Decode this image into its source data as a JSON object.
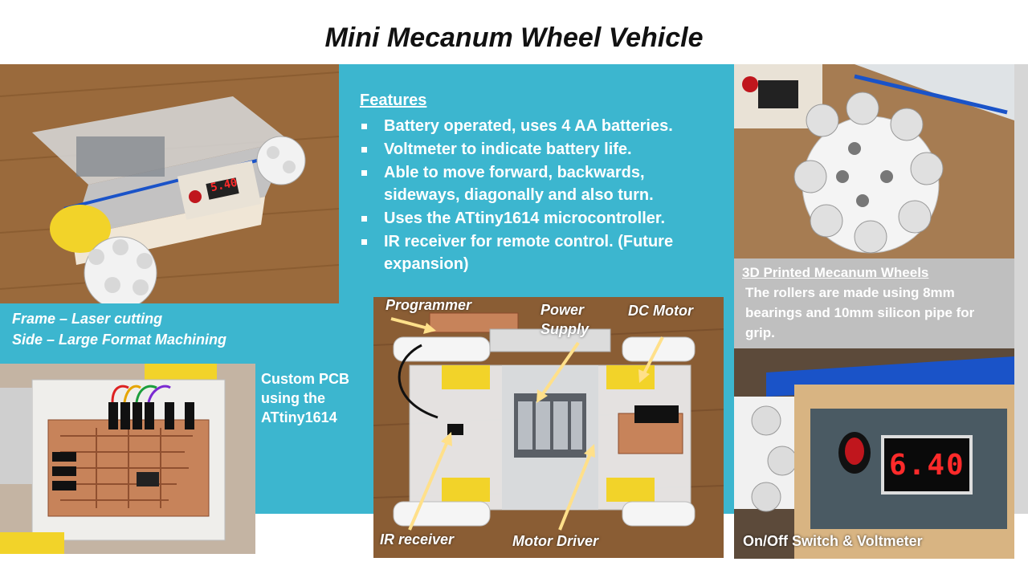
{
  "title": "Mini Mecanum Wheel Vehicle",
  "features": {
    "heading": "Features",
    "items": [
      "Battery operated, uses 4 AA batteries.",
      "Voltmeter to indicate battery life.",
      "Able to move forward, backwards, sideways, diagonally and also turn.",
      "Uses the ATtiny1614 microcontroller.",
      "IR receiver for remote control. (Future expansion)"
    ]
  },
  "frame_caption": {
    "line1": "Frame – Laser cutting",
    "line2": "Side – Large Format Machining"
  },
  "pcb_caption": "Custom PCB using the ATtiny1614",
  "wheels": {
    "heading": "3D Printed Mecanum Wheels",
    "text": "The rollers are made using 8mm bearings and 10mm silicon pipe for grip."
  },
  "switch_caption": "On/Off Switch & Voltmeter",
  "voltmeter_small": "5.40",
  "voltmeter_large": "6.40",
  "diagram_labels": {
    "programmer": "Programmer",
    "power_supply": "Power Supply",
    "dc_motor": "DC Motor",
    "ir_receiver": "IR receiver",
    "motor_driver": "Motor Driver"
  },
  "colors": {
    "teal": "#3cb6cf",
    "grey": "#d6d6d6",
    "arrow": "#ffe08a",
    "led_red": "#ff2a2a"
  }
}
